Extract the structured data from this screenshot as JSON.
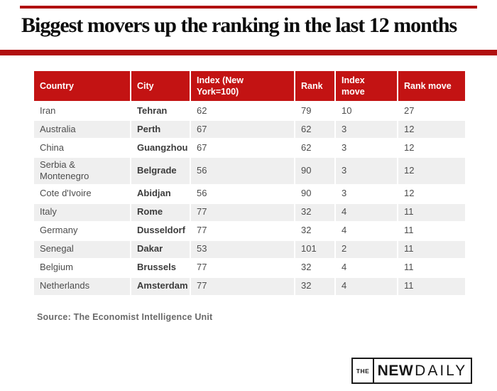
{
  "title": "Biggest movers up the ranking in the last 12 months",
  "source": "Source: The Economist Intelligence Unit",
  "colors": {
    "header_red": "#c31313",
    "rule_red": "#b11010",
    "row_alt_gray": "#efefef"
  },
  "chart_data": {
    "type": "table",
    "title": "Biggest movers up the ranking in the last 12 months",
    "columns": [
      "Country",
      "City",
      "Index (New York=100)",
      "Rank",
      "Index move",
      "Rank move"
    ],
    "rows": [
      [
        "Iran",
        "Tehran",
        "62",
        "79",
        "10",
        "27"
      ],
      [
        "Australia",
        "Perth",
        "67",
        "62",
        "3",
        "12"
      ],
      [
        "China",
        "Guangzhou",
        "67",
        "62",
        "3",
        "12"
      ],
      [
        "Serbia & Montenegro",
        "Belgrade",
        "56",
        "90",
        "3",
        "12"
      ],
      [
        "Cote d'Ivoire",
        "Abidjan",
        "56",
        "90",
        "3",
        "12"
      ],
      [
        "Italy",
        "Rome",
        "77",
        "32",
        "4",
        "11"
      ],
      [
        "Germany",
        "Dusseldorf",
        "77",
        "32",
        "4",
        "11"
      ],
      [
        "Senegal",
        "Dakar",
        "53",
        "101",
        "2",
        "11"
      ],
      [
        "Belgium",
        "Brussels",
        "77",
        "32",
        "4",
        "11"
      ],
      [
        "Netherlands",
        "Amsterdam",
        "77",
        "32",
        "4",
        "11"
      ]
    ],
    "source": "Source: The Economist Intelligence Unit",
    "layout_hints": {
      "alternating_row_shading": true,
      "header_background": "#c31313",
      "header_text_color": "#ffffff"
    }
  },
  "logo": {
    "the": "THE",
    "new": "NEW",
    "daily": "DAILY"
  }
}
